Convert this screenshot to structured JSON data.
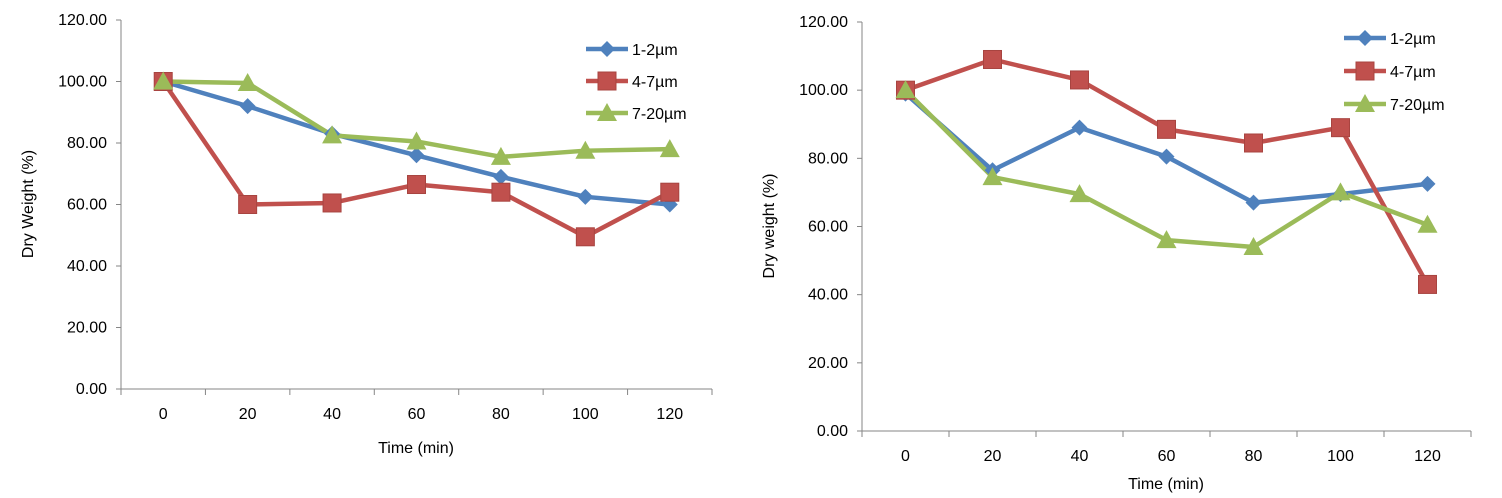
{
  "colors": {
    "series_1_2": "#4F81BD",
    "series_4_7": "#C0504D",
    "series_7_20": "#9BBB59",
    "axis": "#868686"
  },
  "chart_data": [
    {
      "type": "line",
      "title": "",
      "xlabel": "Time (min)",
      "ylabel": "Dry Weight (%)",
      "categories": [
        "0",
        "20",
        "40",
        "60",
        "80",
        "100",
        "120"
      ],
      "ylim": [
        0,
        120
      ],
      "yticks": [
        "0.00",
        "20.00",
        "40.00",
        "60.00",
        "80.00",
        "100.00",
        "120.00"
      ],
      "grid": false,
      "legend_position": "top-right",
      "series": [
        {
          "name": "1-2µm",
          "marker": "diamond",
          "values": [
            100,
            92,
            83,
            76,
            69,
            62.5,
            60
          ]
        },
        {
          "name": "4-7µm",
          "marker": "square",
          "values": [
            100,
            60,
            60.5,
            66.5,
            64,
            49.5,
            64
          ]
        },
        {
          "name": "7-20µm",
          "marker": "triangle",
          "values": [
            100,
            99.5,
            82.5,
            80.5,
            75.5,
            77.5,
            78
          ]
        }
      ]
    },
    {
      "type": "line",
      "title": "",
      "xlabel": "Time (min)",
      "ylabel": "Dry weight (%)",
      "categories": [
        "0",
        "20",
        "40",
        "60",
        "80",
        "100",
        "120"
      ],
      "ylim": [
        0,
        120
      ],
      "yticks": [
        "0.00",
        "20.00",
        "40.00",
        "60.00",
        "80.00",
        "100.00",
        "120.00"
      ],
      "grid": false,
      "legend_position": "top-right",
      "series": [
        {
          "name": "1-2µm",
          "marker": "diamond",
          "values": [
            99,
            76.5,
            89,
            80.5,
            67,
            69.5,
            72.5
          ]
        },
        {
          "name": "4-7µm",
          "marker": "square",
          "values": [
            100,
            109,
            103,
            88.5,
            84.5,
            89,
            43
          ]
        },
        {
          "name": "7-20µm",
          "marker": "triangle",
          "values": [
            100,
            74.5,
            69.5,
            56,
            54,
            70,
            60.5
          ]
        }
      ]
    }
  ]
}
